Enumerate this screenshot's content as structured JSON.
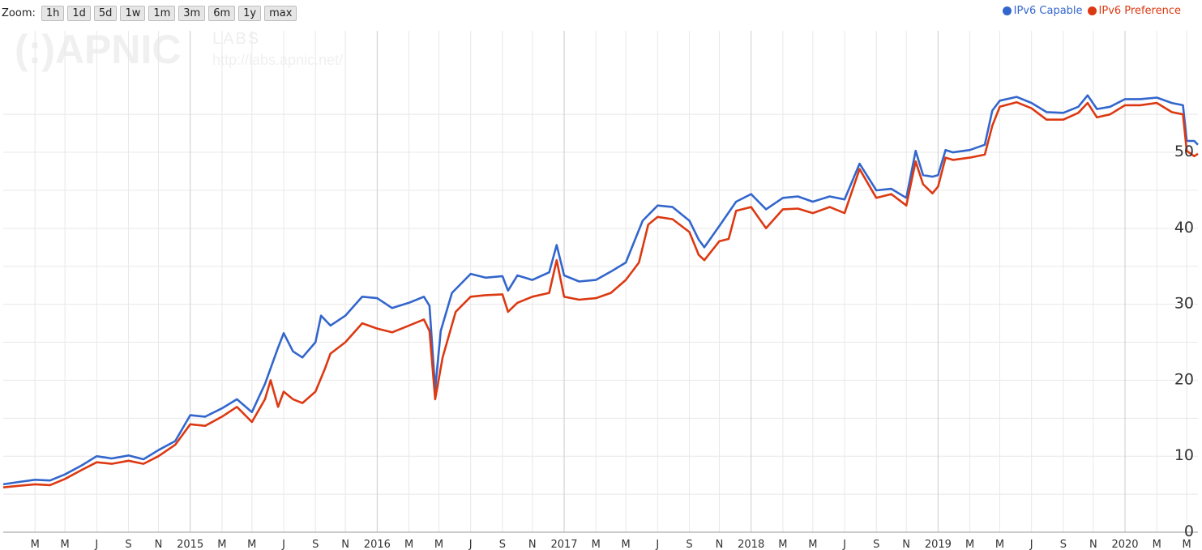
{
  "zoom": {
    "label": "Zoom:",
    "buttons": [
      "1h",
      "1d",
      "5d",
      "1w",
      "1m",
      "3m",
      "6m",
      "1y",
      "max"
    ]
  },
  "watermark": {
    "logo": "(:)APNIC",
    "labs": "LABS",
    "url": "http://labs.apnic.net/"
  },
  "colors": {
    "capable": "#3366cc",
    "preference": "#dc3912",
    "grid": "#e8e8e8",
    "major_grid": "#cccccc"
  },
  "chart_data": {
    "type": "line",
    "y_axis_position": "right",
    "ylim": [
      0,
      58
    ],
    "y_ticks": [
      0,
      10,
      20,
      30,
      40,
      50
    ],
    "legend_position": "top-right",
    "x_range": [
      2014.0,
      2020.39
    ],
    "x_tick_labels": [
      {
        "x": 2014.17,
        "label": "M"
      },
      {
        "x": 2014.33,
        "label": "M"
      },
      {
        "x": 2014.5,
        "label": "J"
      },
      {
        "x": 2014.67,
        "label": "S"
      },
      {
        "x": 2014.83,
        "label": "N"
      },
      {
        "x": 2015.0,
        "label": "2015",
        "major": true
      },
      {
        "x": 2015.17,
        "label": "M"
      },
      {
        "x": 2015.33,
        "label": "M"
      },
      {
        "x": 2015.5,
        "label": "J"
      },
      {
        "x": 2015.67,
        "label": "S"
      },
      {
        "x": 2015.83,
        "label": "N"
      },
      {
        "x": 2016.0,
        "label": "2016",
        "major": true
      },
      {
        "x": 2016.17,
        "label": "M"
      },
      {
        "x": 2016.33,
        "label": "M"
      },
      {
        "x": 2016.5,
        "label": "J"
      },
      {
        "x": 2016.67,
        "label": "S"
      },
      {
        "x": 2016.83,
        "label": "N"
      },
      {
        "x": 2017.0,
        "label": "2017",
        "major": true
      },
      {
        "x": 2017.17,
        "label": "M"
      },
      {
        "x": 2017.33,
        "label": "M"
      },
      {
        "x": 2017.5,
        "label": "J"
      },
      {
        "x": 2017.67,
        "label": "S"
      },
      {
        "x": 2017.83,
        "label": "N"
      },
      {
        "x": 2018.0,
        "label": "2018",
        "major": true
      },
      {
        "x": 2018.17,
        "label": "M"
      },
      {
        "x": 2018.33,
        "label": "M"
      },
      {
        "x": 2018.5,
        "label": "J"
      },
      {
        "x": 2018.67,
        "label": "S"
      },
      {
        "x": 2018.83,
        "label": "N"
      },
      {
        "x": 2019.0,
        "label": "2019",
        "major": true
      },
      {
        "x": 2019.17,
        "label": "M"
      },
      {
        "x": 2019.33,
        "label": "M"
      },
      {
        "x": 2019.5,
        "label": "J"
      },
      {
        "x": 2019.67,
        "label": "S"
      },
      {
        "x": 2019.83,
        "label": "N"
      },
      {
        "x": 2020.0,
        "label": "2020",
        "major": true
      },
      {
        "x": 2020.17,
        "label": "M"
      },
      {
        "x": 2020.33,
        "label": "M"
      }
    ],
    "series": [
      {
        "name": "IPv6 Capable",
        "color": "#3366cc",
        "points": [
          [
            2014.0,
            6.3
          ],
          [
            2014.08,
            6.6
          ],
          [
            2014.17,
            6.9
          ],
          [
            2014.25,
            6.8
          ],
          [
            2014.33,
            7.6
          ],
          [
            2014.42,
            8.8
          ],
          [
            2014.5,
            10.0
          ],
          [
            2014.58,
            9.7
          ],
          [
            2014.67,
            10.1
          ],
          [
            2014.75,
            9.6
          ],
          [
            2014.83,
            10.8
          ],
          [
            2014.92,
            12.0
          ],
          [
            2015.0,
            15.4
          ],
          [
            2015.08,
            15.2
          ],
          [
            2015.17,
            16.3
          ],
          [
            2015.25,
            17.5
          ],
          [
            2015.33,
            15.8
          ],
          [
            2015.4,
            19.5
          ],
          [
            2015.47,
            24.3
          ],
          [
            2015.5,
            26.2
          ],
          [
            2015.55,
            23.8
          ],
          [
            2015.6,
            23.0
          ],
          [
            2015.67,
            25.0
          ],
          [
            2015.7,
            28.5
          ],
          [
            2015.75,
            27.2
          ],
          [
            2015.83,
            28.5
          ],
          [
            2015.92,
            31.0
          ],
          [
            2016.0,
            30.8
          ],
          [
            2016.08,
            29.5
          ],
          [
            2016.17,
            30.2
          ],
          [
            2016.25,
            31.0
          ],
          [
            2016.28,
            29.8
          ],
          [
            2016.31,
            18.8
          ],
          [
            2016.34,
            26.5
          ],
          [
            2016.4,
            31.5
          ],
          [
            2016.5,
            34.0
          ],
          [
            2016.58,
            33.5
          ],
          [
            2016.67,
            33.7
          ],
          [
            2016.7,
            31.8
          ],
          [
            2016.75,
            33.8
          ],
          [
            2016.83,
            33.2
          ],
          [
            2016.92,
            34.2
          ],
          [
            2016.96,
            37.8
          ],
          [
            2017.0,
            33.8
          ],
          [
            2017.08,
            33.0
          ],
          [
            2017.17,
            33.2
          ],
          [
            2017.25,
            34.3
          ],
          [
            2017.33,
            35.5
          ],
          [
            2017.42,
            41.0
          ],
          [
            2017.5,
            43.0
          ],
          [
            2017.58,
            42.8
          ],
          [
            2017.67,
            41.0
          ],
          [
            2017.72,
            38.5
          ],
          [
            2017.75,
            37.5
          ],
          [
            2017.83,
            40.3
          ],
          [
            2017.92,
            43.5
          ],
          [
            2018.0,
            44.5
          ],
          [
            2018.08,
            42.5
          ],
          [
            2018.17,
            44.0
          ],
          [
            2018.25,
            44.2
          ],
          [
            2018.33,
            43.5
          ],
          [
            2018.42,
            44.2
          ],
          [
            2018.5,
            43.8
          ],
          [
            2018.58,
            48.5
          ],
          [
            2018.67,
            45.0
          ],
          [
            2018.75,
            45.2
          ],
          [
            2018.83,
            44.0
          ],
          [
            2018.88,
            50.2
          ],
          [
            2018.92,
            47.0
          ],
          [
            2018.97,
            46.8
          ],
          [
            2019.0,
            47.0
          ],
          [
            2019.04,
            50.3
          ],
          [
            2019.08,
            50.0
          ],
          [
            2019.17,
            50.3
          ],
          [
            2019.25,
            51.0
          ],
          [
            2019.29,
            55.5
          ],
          [
            2019.33,
            56.8
          ],
          [
            2019.42,
            57.3
          ],
          [
            2019.5,
            56.5
          ],
          [
            2019.58,
            55.3
          ],
          [
            2019.67,
            55.2
          ],
          [
            2019.75,
            56.0
          ],
          [
            2019.8,
            57.5
          ],
          [
            2019.85,
            55.7
          ],
          [
            2019.92,
            56.0
          ],
          [
            2020.0,
            57.0
          ],
          [
            2020.08,
            57.0
          ],
          [
            2020.17,
            57.2
          ],
          [
            2020.25,
            56.5
          ],
          [
            2020.31,
            56.2
          ],
          [
            2020.33,
            51.5
          ],
          [
            2020.37,
            51.5
          ],
          [
            2020.39,
            51.0
          ]
        ]
      },
      {
        "name": "IPv6 Preference",
        "color": "#dc3912",
        "points": [
          [
            2014.0,
            5.9
          ],
          [
            2014.08,
            6.1
          ],
          [
            2014.17,
            6.3
          ],
          [
            2014.25,
            6.2
          ],
          [
            2014.33,
            7.0
          ],
          [
            2014.42,
            8.2
          ],
          [
            2014.5,
            9.2
          ],
          [
            2014.58,
            9.0
          ],
          [
            2014.67,
            9.4
          ],
          [
            2014.75,
            9.0
          ],
          [
            2014.83,
            10.0
          ],
          [
            2014.92,
            11.5
          ],
          [
            2015.0,
            14.2
          ],
          [
            2015.08,
            14.0
          ],
          [
            2015.17,
            15.2
          ],
          [
            2015.25,
            16.5
          ],
          [
            2015.33,
            14.5
          ],
          [
            2015.4,
            17.5
          ],
          [
            2015.43,
            20.0
          ],
          [
            2015.47,
            16.5
          ],
          [
            2015.5,
            18.5
          ],
          [
            2015.55,
            17.5
          ],
          [
            2015.6,
            17.0
          ],
          [
            2015.67,
            18.5
          ],
          [
            2015.72,
            21.5
          ],
          [
            2015.75,
            23.5
          ],
          [
            2015.83,
            25.0
          ],
          [
            2015.92,
            27.5
          ],
          [
            2016.0,
            26.8
          ],
          [
            2016.08,
            26.3
          ],
          [
            2016.17,
            27.2
          ],
          [
            2016.25,
            28.0
          ],
          [
            2016.28,
            26.5
          ],
          [
            2016.31,
            17.5
          ],
          [
            2016.35,
            23.0
          ],
          [
            2016.42,
            29.0
          ],
          [
            2016.5,
            31.0
          ],
          [
            2016.58,
            31.2
          ],
          [
            2016.67,
            31.3
          ],
          [
            2016.7,
            29.0
          ],
          [
            2016.75,
            30.2
          ],
          [
            2016.83,
            31.0
          ],
          [
            2016.92,
            31.5
          ],
          [
            2016.96,
            35.8
          ],
          [
            2017.0,
            31.0
          ],
          [
            2017.08,
            30.6
          ],
          [
            2017.17,
            30.8
          ],
          [
            2017.25,
            31.5
          ],
          [
            2017.33,
            33.2
          ],
          [
            2017.4,
            35.5
          ],
          [
            2017.45,
            40.5
          ],
          [
            2017.5,
            41.5
          ],
          [
            2017.58,
            41.2
          ],
          [
            2017.67,
            39.5
          ],
          [
            2017.72,
            36.5
          ],
          [
            2017.75,
            35.8
          ],
          [
            2017.83,
            38.3
          ],
          [
            2017.88,
            38.6
          ],
          [
            2017.92,
            42.3
          ],
          [
            2018.0,
            42.8
          ],
          [
            2018.08,
            40.0
          ],
          [
            2018.17,
            42.5
          ],
          [
            2018.25,
            42.6
          ],
          [
            2018.33,
            42.0
          ],
          [
            2018.42,
            42.8
          ],
          [
            2018.5,
            42.0
          ],
          [
            2018.58,
            47.8
          ],
          [
            2018.67,
            44.0
          ],
          [
            2018.75,
            44.5
          ],
          [
            2018.83,
            43.0
          ],
          [
            2018.88,
            48.8
          ],
          [
            2018.92,
            45.8
          ],
          [
            2018.97,
            44.6
          ],
          [
            2019.0,
            45.5
          ],
          [
            2019.04,
            49.3
          ],
          [
            2019.08,
            49.0
          ],
          [
            2019.17,
            49.3
          ],
          [
            2019.25,
            49.7
          ],
          [
            2019.29,
            53.5
          ],
          [
            2019.33,
            56.0
          ],
          [
            2019.42,
            56.6
          ],
          [
            2019.5,
            55.8
          ],
          [
            2019.58,
            54.3
          ],
          [
            2019.67,
            54.3
          ],
          [
            2019.75,
            55.2
          ],
          [
            2019.8,
            56.5
          ],
          [
            2019.85,
            54.6
          ],
          [
            2019.92,
            55.0
          ],
          [
            2020.0,
            56.2
          ],
          [
            2020.08,
            56.2
          ],
          [
            2020.17,
            56.5
          ],
          [
            2020.25,
            55.3
          ],
          [
            2020.31,
            55.0
          ],
          [
            2020.33,
            50.2
          ],
          [
            2020.37,
            49.5
          ],
          [
            2020.39,
            49.8
          ]
        ]
      }
    ]
  }
}
